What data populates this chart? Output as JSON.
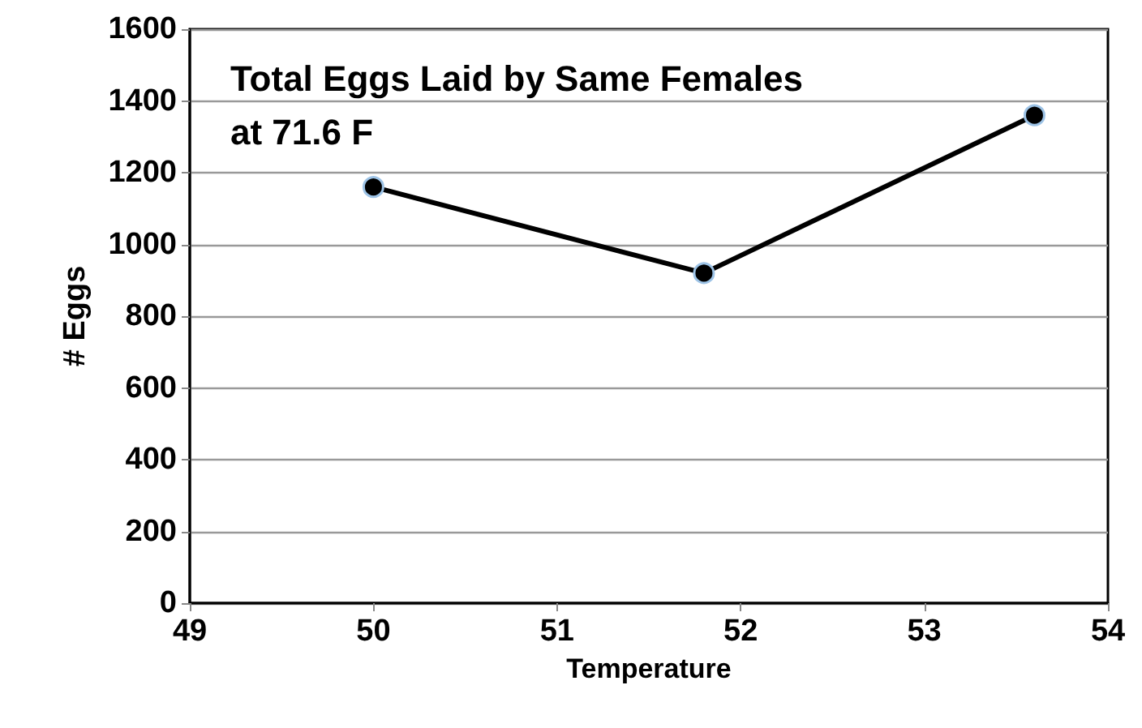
{
  "chart_data": {
    "type": "line",
    "title": "Total Eggs Laid by Same Females\nat 71.6 F",
    "xlabel": "Temperature",
    "ylabel": "# Eggs",
    "x": [
      50,
      51.8,
      53.6
    ],
    "series": [
      {
        "color": "#000000",
        "values": [
          1160,
          920,
          1360
        ]
      }
    ],
    "xlim": [
      49,
      54
    ],
    "xticks": [
      49,
      50,
      51,
      52,
      53,
      54
    ],
    "ylim": [
      0,
      1600
    ],
    "yticks": [
      0,
      200,
      400,
      600,
      800,
      1000,
      1200,
      1400,
      1600
    ],
    "grid": "y",
    "marker": "circle",
    "line_style": "solid"
  }
}
